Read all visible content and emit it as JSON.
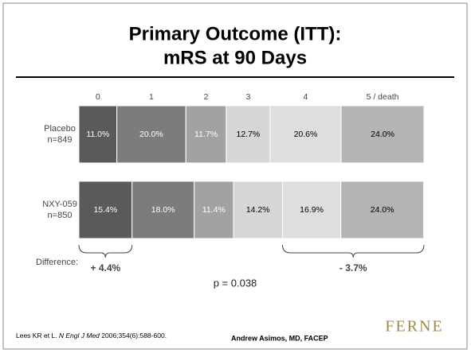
{
  "title": "Primary Outcome (ITT):",
  "title_line2": "mRS at 90 Days",
  "chart_data": {
    "type": "stacked_bar_100",
    "orientation": "horizontal",
    "categories": [
      "Placebo",
      "NXY-059"
    ],
    "category_subtitles": [
      "n=849",
      "n=850"
    ],
    "xlim": [
      0,
      100
    ],
    "series": [
      {
        "name": "0",
        "color": "#5a5a5a",
        "label_color": "#ffffff",
        "values": [
          11.0,
          15.4
        ],
        "value_labels": [
          "11.0%",
          "15.4%"
        ]
      },
      {
        "name": "1",
        "color": "#7c7c7c",
        "label_color": "#ffffff",
        "values": [
          20.0,
          18.0
        ],
        "value_labels": [
          "20.0%",
          "18.0%"
        ]
      },
      {
        "name": "2",
        "color": "#a2a2a2",
        "label_color": "#ffffff",
        "values": [
          11.7,
          11.4
        ],
        "value_labels": [
          "11.7%",
          "11.4%"
        ]
      },
      {
        "name": "3",
        "color": "#d6d6d6",
        "label_color": "#000000",
        "values": [
          12.7,
          14.2
        ],
        "value_labels": [
          "12.7%",
          "14.2%"
        ]
      },
      {
        "name": "4",
        "color": "#dedede",
        "label_color": "#000000",
        "values": [
          20.6,
          16.9
        ],
        "value_labels": [
          "20.6%",
          "16.9%"
        ]
      },
      {
        "name": "5 / death",
        "color": "#b4b4b4",
        "label_color": "#000000",
        "values": [
          24.0,
          24.0
        ],
        "value_labels": [
          "24.0%",
          "24.0%"
        ]
      }
    ],
    "difference_label": "Difference:",
    "differences": [
      {
        "label": "+ 4.4%",
        "value": 4.4
      },
      {
        "label": "- 3.7%",
        "value": -3.7
      }
    ],
    "p_value": "p = 0.038"
  },
  "footer": {
    "citation_prefix": "Lees KR et L. ",
    "citation_journal": "N Engl J Med",
    "citation_suffix": " 2006;354(6):588-600.",
    "author": "Andrew Asimos, MD, FACEP",
    "logo": "FERNE"
  }
}
